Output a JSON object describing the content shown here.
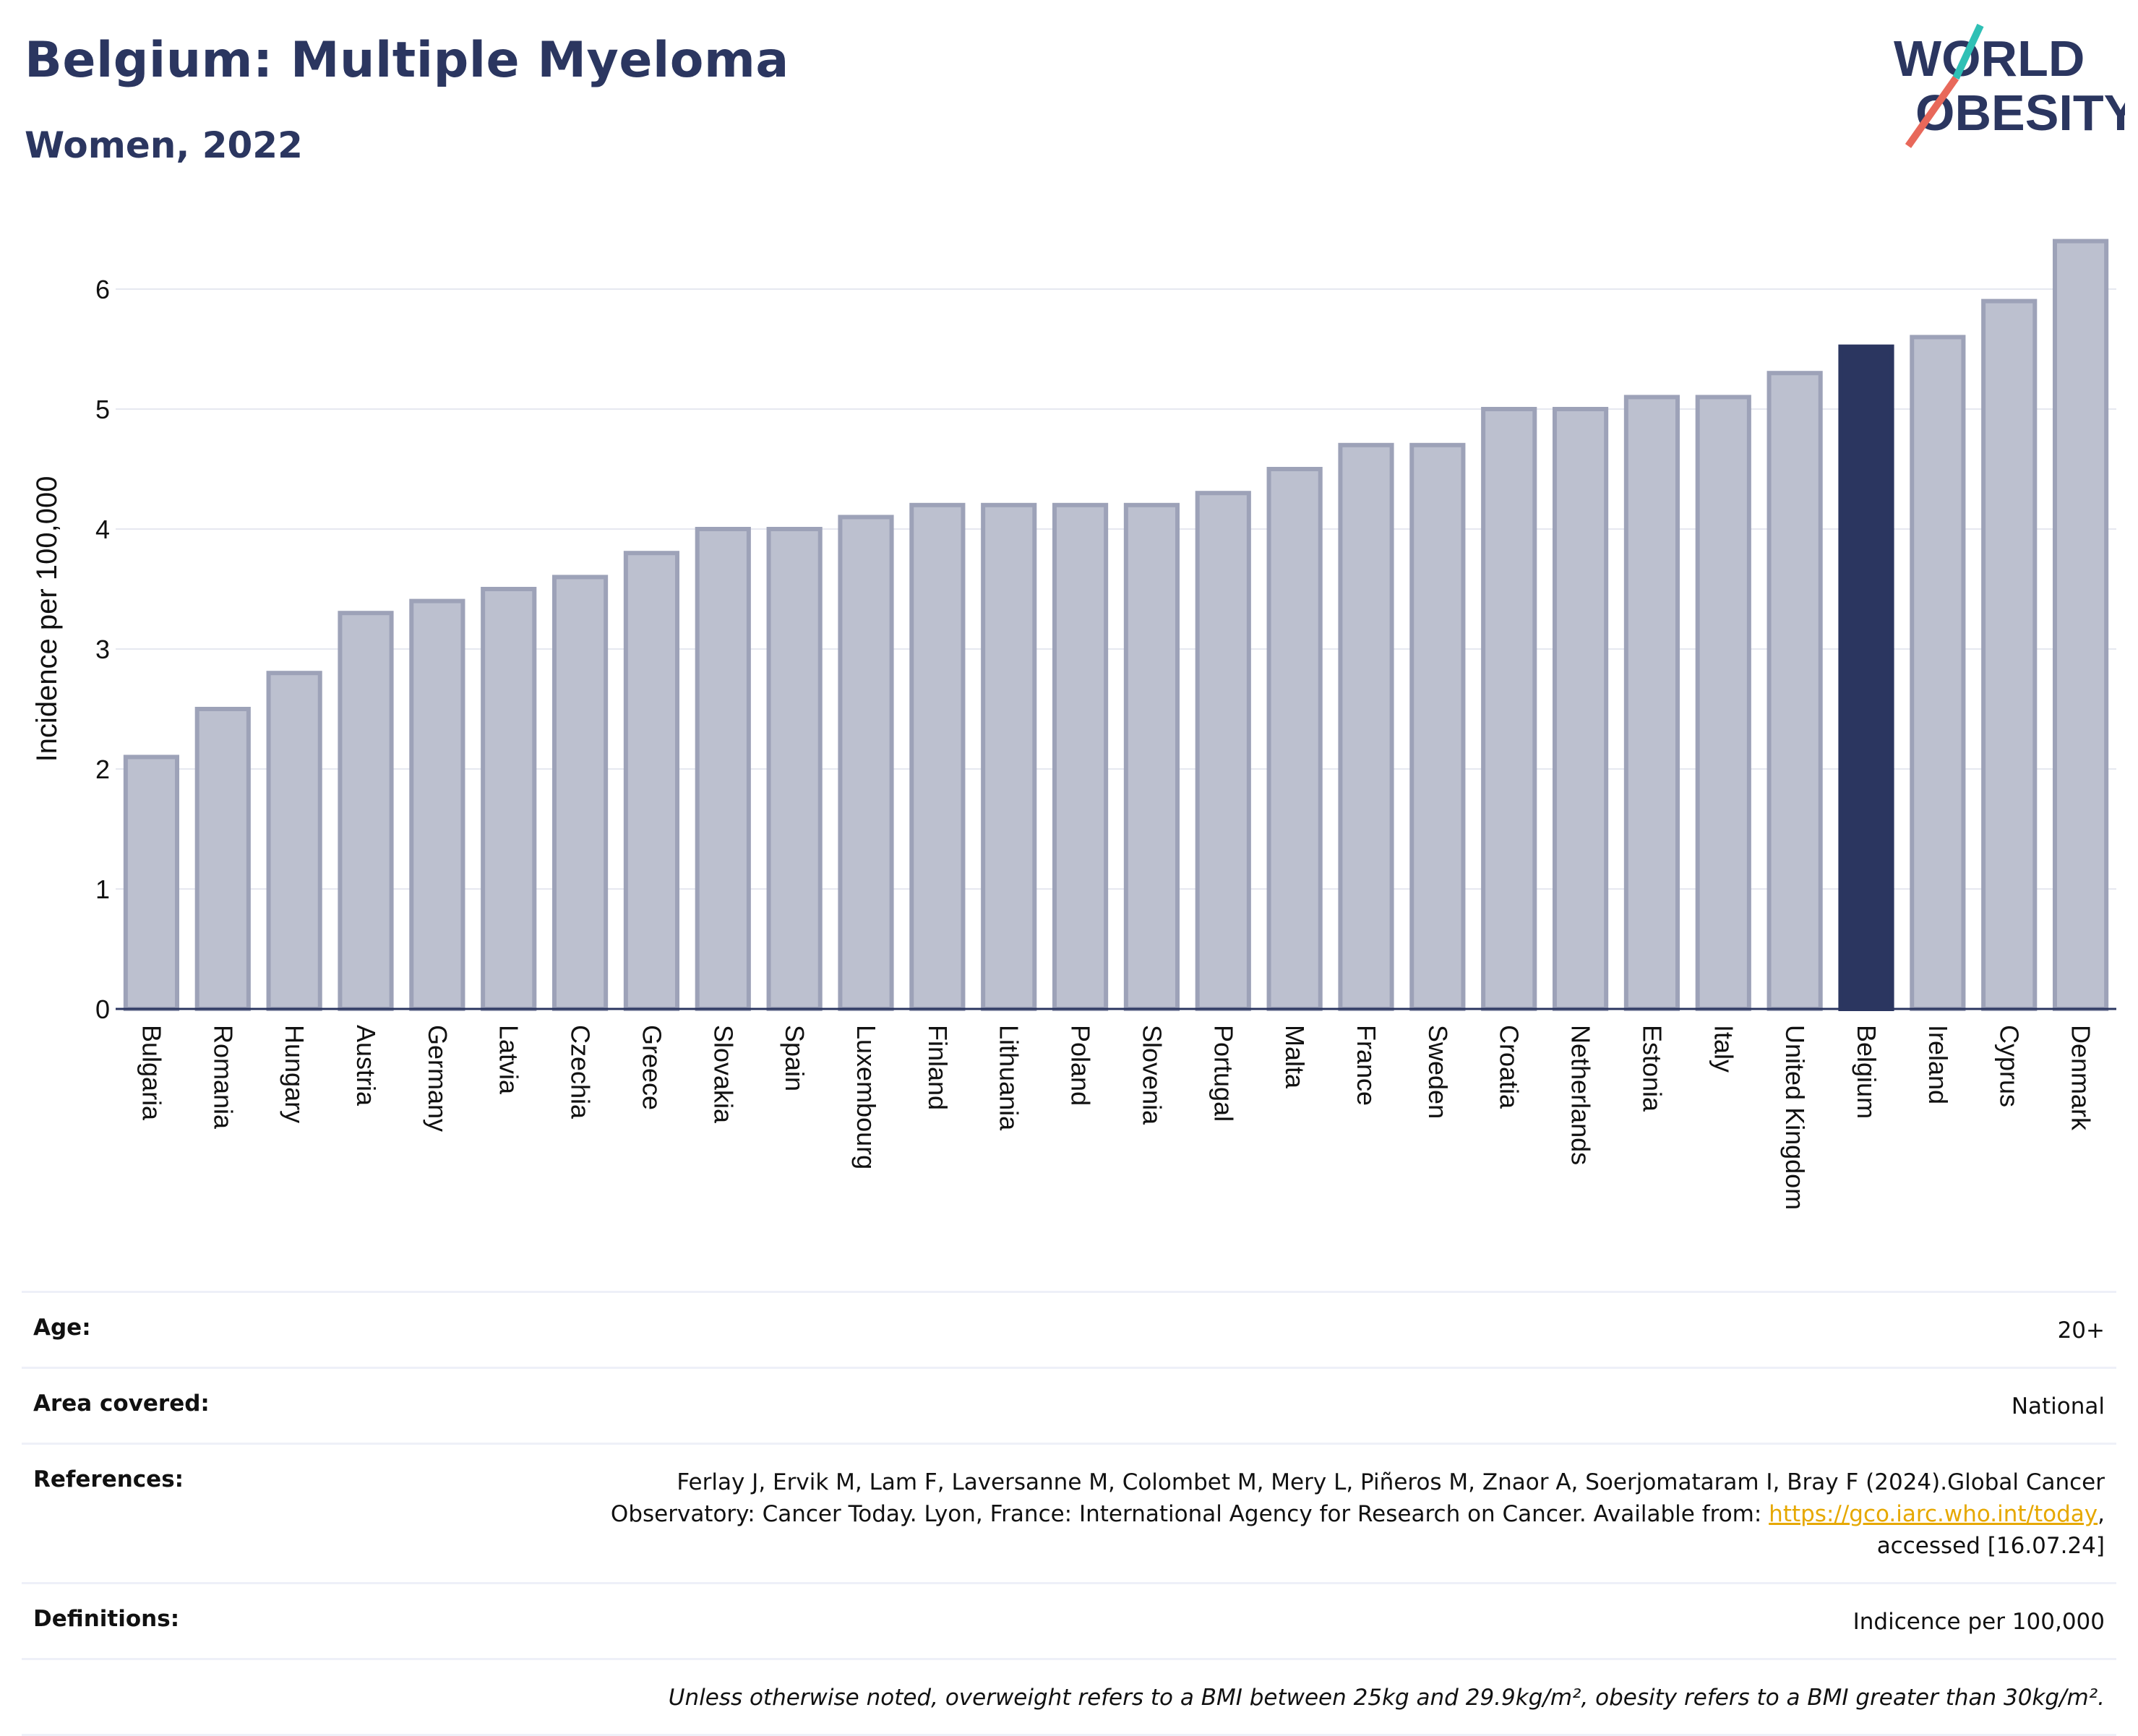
{
  "header": {
    "title": "Belgium: Multiple Myeloma",
    "subtitle": "Women, 2022"
  },
  "logo": {
    "line1": "WORLD",
    "line2": "OBESITY",
    "text_color": "#2b3660",
    "slash_colors": [
      "#2fc0b5",
      "#e8685a"
    ]
  },
  "colors": {
    "bar": "#bcc0cf",
    "bar_stroke": "#9da2b8",
    "highlight": "#2b3660",
    "grid": "#e6e8f0",
    "axis": "#2b3660"
  },
  "chart_data": {
    "type": "bar",
    "ylabel": "Incidence per 100,000",
    "xlabel": "",
    "ylim": [
      0,
      6.5
    ],
    "yticks": [
      0,
      1,
      2,
      3,
      4,
      5,
      6
    ],
    "grid": true,
    "highlight": "Belgium",
    "categories": [
      "Bulgaria",
      "Romania",
      "Hungary",
      "Austria",
      "Germany",
      "Latvia",
      "Czechia",
      "Greece",
      "Slovakia",
      "Spain",
      "Luxembourg",
      "Finland",
      "Lithuania",
      "Poland",
      "Slovenia",
      "Portugal",
      "Malta",
      "France",
      "Sweden",
      "Croatia",
      "Netherlands",
      "Estonia",
      "Italy",
      "United Kingdom",
      "Belgium",
      "Ireland",
      "Cyprus",
      "Denmark"
    ],
    "values": [
      2.1,
      2.5,
      2.8,
      3.3,
      3.4,
      3.5,
      3.6,
      3.8,
      4.0,
      4.0,
      4.1,
      4.2,
      4.2,
      4.2,
      4.2,
      4.3,
      4.5,
      4.7,
      4.7,
      5.0,
      5.0,
      5.1,
      5.1,
      5.3,
      5.52,
      5.6,
      5.9,
      6.4
    ]
  },
  "info": {
    "age_label": "Age:",
    "age_value": "20+",
    "area_label": "Area covered:",
    "area_value": "National",
    "references_label": "References:",
    "references_line1": "Ferlay J, Ervik M, Lam F, Laversanne M, Colombet M, Mery L, Piñeros M, Znaor A, Soerjomataram I, Bray F (2024).Global Cancer",
    "references_line2_pre": "Observatory: Cancer Today. Lyon, France: International Agency for Research on Cancer. Available from: ",
    "references_link": "https://gco.iarc.who.int/today",
    "references_line2_post": ",",
    "references_line3": "accessed [16.07.24]",
    "definitions_label": "Definitions:",
    "definitions_value": "Indicence per 100,000",
    "note": "Unless otherwise noted, overweight refers to a BMI between 25kg and 29.9kg/m², obesity refers to a BMI greater than 30kg/m²."
  }
}
